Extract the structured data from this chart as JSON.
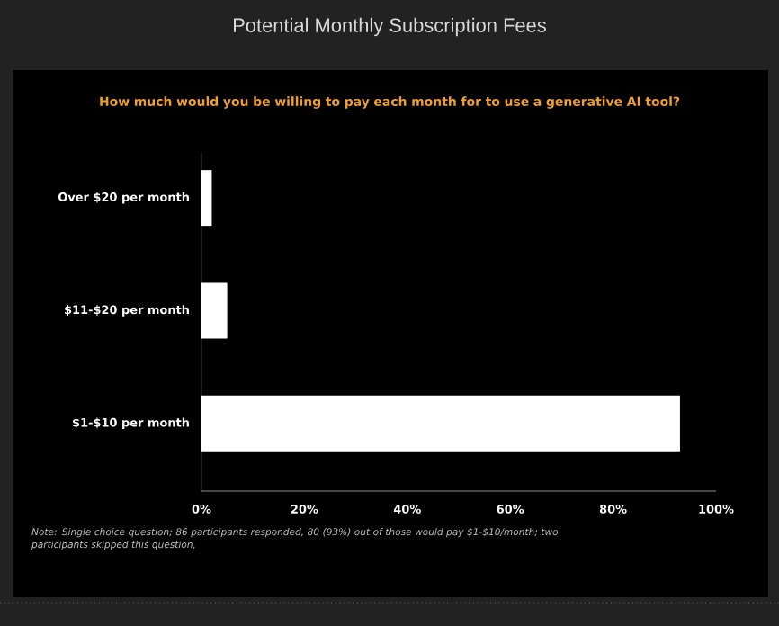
{
  "chart_data": {
    "type": "bar",
    "orientation": "horizontal",
    "title": "Potential Monthly Subscription Fees",
    "subtitle": "How much would you be willing to pay each month for to use a generative AI tool?",
    "categories": [
      "Over $20 per month",
      "$11-$20 per month",
      "$1-$10 per month"
    ],
    "values": [
      2,
      5,
      93
    ],
    "color": "#ffffff",
    "xlim": [
      0,
      100
    ],
    "xticks": [
      {
        "value": 0,
        "label": "0%"
      },
      {
        "value": 20,
        "label": "20%"
      },
      {
        "value": 40,
        "label": "40%"
      },
      {
        "value": 60,
        "label": "60%"
      },
      {
        "value": 80,
        "label": "80%"
      },
      {
        "value": 100,
        "label": "100%"
      }
    ],
    "annotations": [
      "Note: Single choice question; 86 participants responded, 80 (93%) out of those would pay $1-$10/month; two participants skipped this question,"
    ]
  }
}
